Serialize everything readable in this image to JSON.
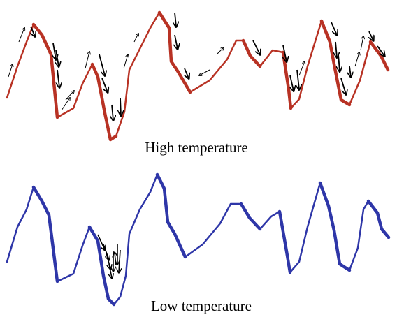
{
  "panels": [
    {
      "label": "High temperature",
      "color": "#b83224",
      "arrow_color": "#000000",
      "arrows": "many",
      "arrow_style": "mixed-thick-thin"
    },
    {
      "label": "Low temperature",
      "color": "#2e36a8",
      "arrow_color": "#000000",
      "arrows": "few",
      "arrow_style": "thick-cluster"
    }
  ]
}
